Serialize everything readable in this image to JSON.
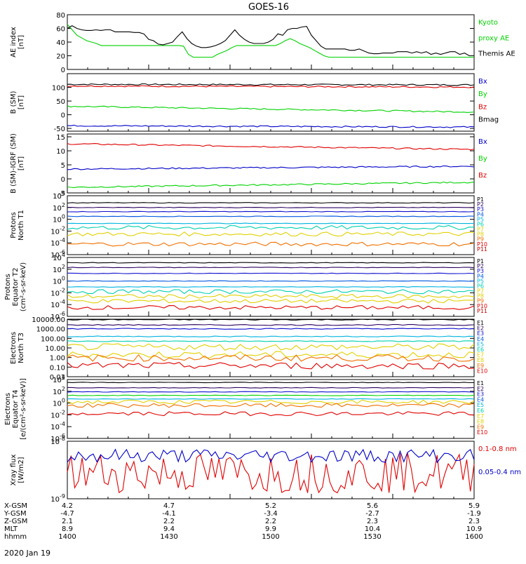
{
  "title": "GOES-16",
  "date_label": "2020 Jan 19",
  "colors": {
    "black": "#000000",
    "green": "#00d200",
    "blue": "#0000c8",
    "red": "#e00000",
    "P1": "#000000",
    "P2": "#2a0060",
    "P3": "#1010d0",
    "P4": "#0058e0",
    "P5": "#00b4e0",
    "P6": "#00d0b0",
    "P7": "#e0d000",
    "P8": "#e0d000",
    "P9": "#f07000",
    "P10": "#e00000",
    "P11": "#c00000"
  },
  "chart_data": [
    {
      "type": "line",
      "id": "ae",
      "ylabel": [
        "AE index",
        "[nT]"
      ],
      "ylim": [
        0,
        80
      ],
      "yticks": [
        "0",
        "20",
        "40",
        "60",
        "80"
      ],
      "legend": [
        {
          "label": "Kyoto",
          "color": "green"
        },
        {
          "label": "proxy AE",
          "color": "green"
        },
        {
          "label": "Themis AE",
          "color": "black"
        }
      ],
      "series": [
        {
          "name": "Kyoto proxy AE",
          "color": "green",
          "values": [
            66,
            58,
            50,
            46,
            42,
            40,
            38,
            35,
            35,
            35,
            35,
            35,
            35,
            35,
            35,
            35,
            35,
            35,
            35,
            35,
            35,
            35,
            35,
            35,
            34,
            22,
            18,
            18,
            18,
            18,
            18,
            22,
            25,
            28,
            32,
            35,
            35,
            35,
            35,
            35,
            35,
            35,
            35,
            35,
            38,
            42,
            45,
            42,
            38,
            35,
            32,
            28,
            24,
            20,
            18,
            18,
            18,
            18,
            18,
            18,
            18,
            18,
            18,
            18,
            18,
            18,
            18,
            18,
            18,
            18,
            18,
            18,
            18,
            18,
            18,
            18,
            18,
            18,
            18,
            18,
            18,
            18,
            18,
            18,
            18
          ]
        },
        {
          "name": "Themis AE",
          "color": "black",
          "values": [
            60,
            64,
            60,
            58,
            57,
            57,
            58,
            57,
            58,
            58,
            55,
            55,
            55,
            55,
            54,
            54,
            52,
            44,
            42,
            37,
            36,
            38,
            40,
            48,
            55,
            45,
            38,
            34,
            32,
            32,
            33,
            35,
            38,
            42,
            50,
            58,
            50,
            44,
            40,
            38,
            38,
            38,
            40,
            44,
            52,
            50,
            58,
            60,
            60,
            62,
            63,
            50,
            42,
            34,
            30,
            30,
            30,
            30,
            30,
            28,
            28,
            30,
            27,
            24,
            23,
            23,
            24,
            24,
            24,
            26,
            26,
            26,
            24,
            26,
            24,
            26,
            22,
            24,
            22,
            24,
            26,
            26,
            22,
            24,
            20,
            20
          ]
        }
      ]
    },
    {
      "type": "line",
      "id": "bsm",
      "ylabel": [
        "B (SM)",
        "[nT]"
      ],
      "ylim": [
        -60,
        150
      ],
      "yticks": [
        "-50",
        "0",
        "50",
        "100"
      ],
      "legend": [
        {
          "label": "Bx",
          "color": "blue"
        },
        {
          "label": "By",
          "color": "green"
        },
        {
          "label": "Bz",
          "color": "red"
        },
        {
          "label": "Bmag",
          "color": "black"
        }
      ],
      "series": [
        {
          "name": "Bmag",
          "color": "black",
          "start": 111,
          "end": 109
        },
        {
          "name": "Bz",
          "color": "red",
          "start": 105,
          "end": 101
        },
        {
          "name": "By",
          "color": "green",
          "start": 31,
          "end": 10
        },
        {
          "name": "Bx",
          "color": "blue",
          "start": -40,
          "end": -45
        }
      ]
    },
    {
      "type": "line",
      "id": "bigrf",
      "ylabel": [
        "B (SM)-IGRF (SM)",
        "[nT]"
      ],
      "ylim": [
        -5,
        16
      ],
      "yticks": [
        "-5",
        "0",
        "5",
        "10",
        "15"
      ],
      "legend": [
        {
          "label": "Bx",
          "color": "blue"
        },
        {
          "label": "By",
          "color": "green"
        },
        {
          "label": "Bz",
          "color": "red"
        }
      ],
      "series": [
        {
          "name": "Bz",
          "color": "red",
          "start": 12.5,
          "end": 10.5
        },
        {
          "name": "Bx",
          "color": "blue",
          "start": 3.5,
          "end": 4.5
        },
        {
          "name": "By",
          "color": "green",
          "start": -3.0,
          "end": -1.2
        }
      ]
    },
    {
      "type": "line",
      "id": "protons-t1",
      "log": true,
      "ylabel": [
        "Protons",
        "North T1"
      ],
      "ylim": [
        -6,
        4
      ],
      "yticks": [
        "10^-6",
        "10^-4",
        "10^-2",
        "10^0",
        "10^2",
        "10^4"
      ],
      "legend": [
        "P1",
        "P2",
        "P3",
        "P4",
        "P5",
        "P6",
        "P7",
        "P8",
        "P9",
        "P10",
        "P11"
      ],
      "series": [
        {
          "name": "P1",
          "color": "P1",
          "level": 2.8
        },
        {
          "name": "P2",
          "color": "P2",
          "level": 2.0
        },
        {
          "name": "P3",
          "color": "P3",
          "level": 1.3
        },
        {
          "name": "P4",
          "color": "P4",
          "level": 0.5
        },
        {
          "name": "P5",
          "color": "P5",
          "level": -0.7
        },
        {
          "name": "P6",
          "color": "P6",
          "level": -1.4
        },
        {
          "name": "P7",
          "color": "P7",
          "level": -2.5
        },
        {
          "name": "P9",
          "color": "P9",
          "level": -4.2
        }
      ]
    },
    {
      "type": "line",
      "id": "protons-t2",
      "log": true,
      "ylabel": [
        "Protons",
        "Equator T2",
        "(cm²-s-sr-keV)"
      ],
      "ylim": [
        -6,
        4
      ],
      "yticks": [
        "10^-6",
        "10^-4",
        "10^-2",
        "10^0",
        "10^2",
        "10^4"
      ],
      "legend": [
        "P1",
        "P2",
        "P3",
        "P4",
        "P5",
        "P6",
        "P7",
        "P8",
        "P9",
        "P10",
        "P11"
      ],
      "series": [
        {
          "name": "P1",
          "color": "P1",
          "level": 3.1
        },
        {
          "name": "P2",
          "color": "P2",
          "level": 2.3
        },
        {
          "name": "P3",
          "color": "P3",
          "level": 1.3
        },
        {
          "name": "P4",
          "color": "P4",
          "level": 0.0
        },
        {
          "name": "P5",
          "color": "P5",
          "level": -1.0
        },
        {
          "name": "P6",
          "color": "P6",
          "level": -1.8
        },
        {
          "name": "P7",
          "color": "P7",
          "level": -2.6
        },
        {
          "name": "P8",
          "color": "P8",
          "level": -3.4
        },
        {
          "name": "P10",
          "color": "P10",
          "level": -4.5
        }
      ]
    },
    {
      "type": "line",
      "id": "electrons-t3",
      "log": true,
      "ylabel": [
        "Electrons",
        "North T3"
      ],
      "ylim": [
        -2,
        4
      ],
      "yticks": [
        "0.01",
        "0.10",
        "1.00",
        "10.00",
        "100.00",
        "1000.00",
        "10000.00"
      ],
      "legend": [
        "E1",
        "E2",
        "E3",
        "E4",
        "E5",
        "E6",
        "E7",
        "E8",
        "E9",
        "E10"
      ],
      "series": [
        {
          "name": "E1",
          "color": "P1",
          "level": 3.95
        },
        {
          "name": "E2",
          "color": "P2",
          "level": 3.4
        },
        {
          "name": "E3",
          "color": "P3",
          "level": 3.0
        },
        {
          "name": "E4",
          "color": "P5",
          "level": 2.2
        },
        {
          "name": "E5",
          "color": "P6",
          "level": 1.7
        },
        {
          "name": "E6",
          "color": "P7",
          "level": 1.1
        },
        {
          "name": "E7",
          "color": "P7",
          "level": 0.3
        },
        {
          "name": "E8",
          "color": "P9",
          "level": -0.05
        },
        {
          "name": "E9",
          "color": "P10",
          "level": -0.85
        }
      ]
    },
    {
      "type": "line",
      "id": "electrons-t4",
      "log": true,
      "ylabel": [
        "Electrons",
        "Equator T4",
        "[e/(cm²-s-sr-keV)]"
      ],
      "ylim": [
        -6,
        4
      ],
      "yticks": [
        "10^-6",
        "10^-4",
        "10^-2",
        "10^0",
        "10^2",
        "10^4"
      ],
      "legend": [
        "E1",
        "E2",
        "E3",
        "E4",
        "E5",
        "E6",
        "E7",
        "E8",
        "E9",
        "E10"
      ],
      "series": [
        {
          "name": "E1",
          "color": "P1",
          "level": 3.5
        },
        {
          "name": "E2",
          "color": "P2",
          "level": 2.6
        },
        {
          "name": "E3",
          "color": "P3",
          "level": 1.9
        },
        {
          "name": "E4",
          "color": "green",
          "level": 1.3
        },
        {
          "name": "E5",
          "color": "P5",
          "level": 0.7
        },
        {
          "name": "E6",
          "color": "P7",
          "level": 0.2
        },
        {
          "name": "E7",
          "color": "P9",
          "level": -0.4
        },
        {
          "name": "E9",
          "color": "P10",
          "level": -1.8
        }
      ]
    },
    {
      "type": "line",
      "id": "xray",
      "log": true,
      "ylabel": [
        "Xray flux",
        "[W/m2]"
      ],
      "ylim": [
        -9,
        -8
      ],
      "yticks": [
        "10^-9",
        "10^-8"
      ],
      "legend": [
        {
          "label": "0.1-0.8 nm",
          "color": "red"
        },
        {
          "label": "0.05-0.4 nm",
          "color": "blue"
        }
      ],
      "series": [
        {
          "name": "0.1-0.8 nm",
          "color": "red",
          "level": -8.55
        },
        {
          "name": "0.05-0.4 nm",
          "color": "blue",
          "level": -8.25
        }
      ]
    }
  ],
  "x_axis": {
    "row_labels": [
      "X-GSM",
      "Y-GSM",
      "Z-GSM",
      "MLT",
      "hhmm"
    ],
    "columns": [
      {
        "values": [
          "4.2",
          "-4.7",
          "2.1",
          "8.9",
          "1400"
        ]
      },
      {
        "values": [
          "4.7",
          "-4.1",
          "2.2",
          "9.4",
          "1430"
        ]
      },
      {
        "values": [
          "5.2",
          "-3.4",
          "2.2",
          "9.9",
          "1500"
        ]
      },
      {
        "values": [
          "5.6",
          "-2.7",
          "2.3",
          "10.4",
          "1530"
        ]
      },
      {
        "values": [
          "5.9",
          "-1.9",
          "2.3",
          "10.9",
          "1600"
        ]
      }
    ]
  }
}
